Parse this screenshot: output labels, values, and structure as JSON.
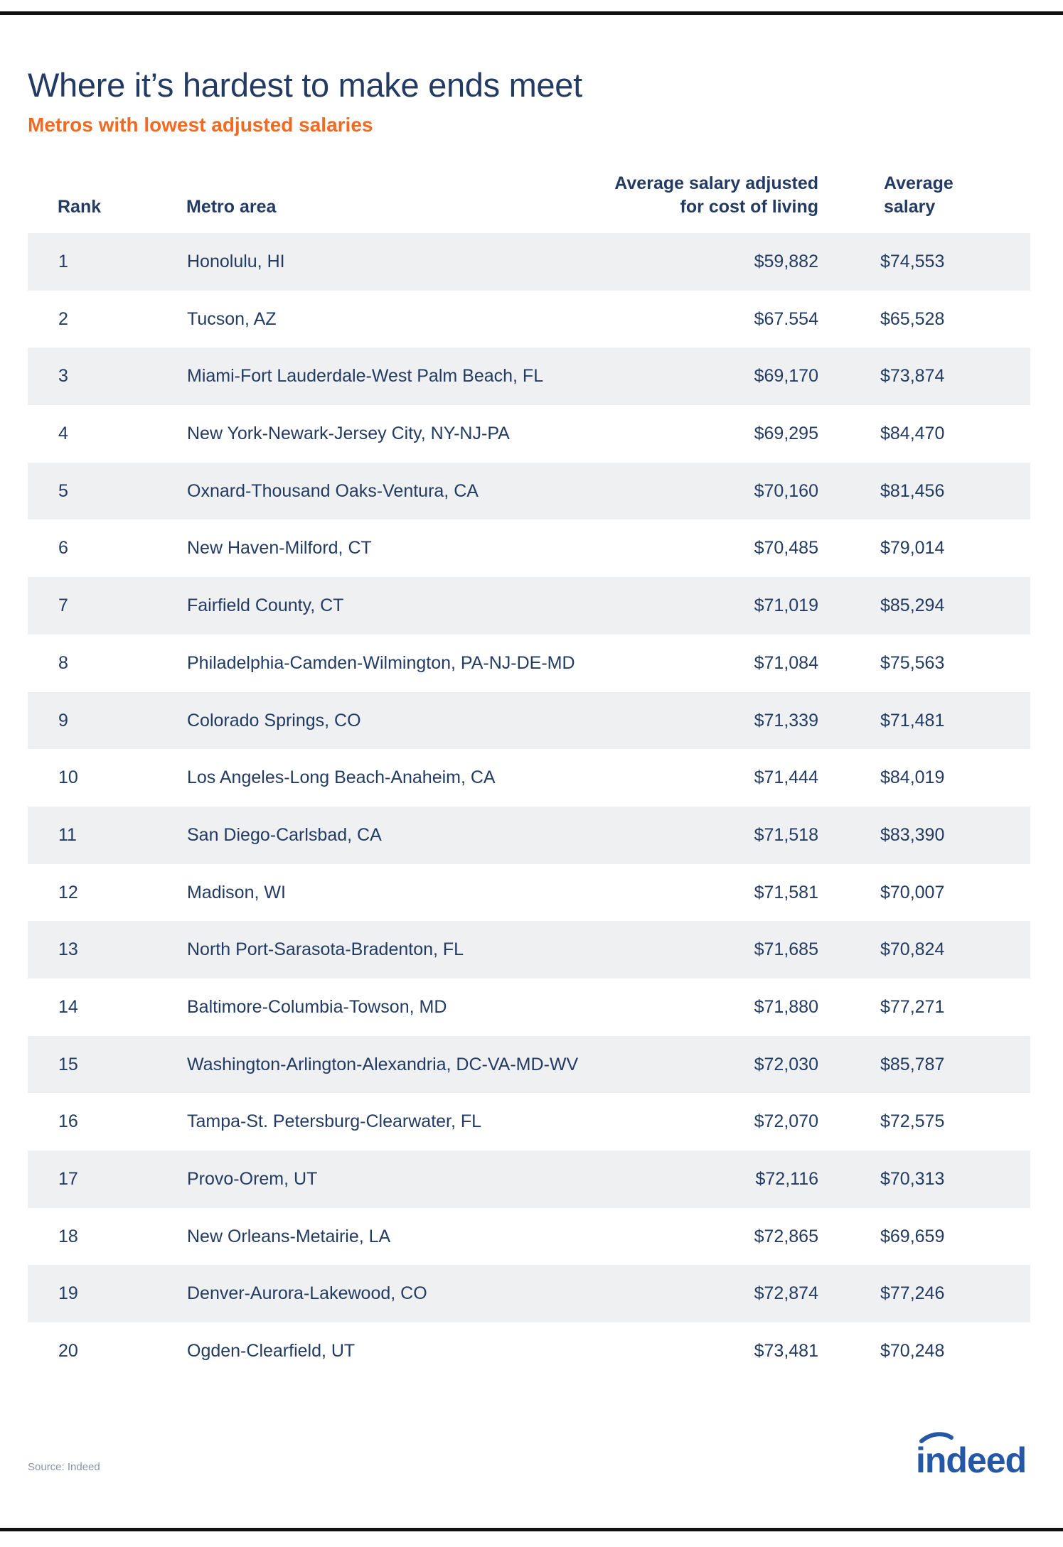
{
  "title": "Where it’s hardest to make ends meet",
  "subtitle": "Metros with lowest adjusted salaries",
  "colors": {
    "text": "#233b62",
    "accent": "#f26a21",
    "row_shade": "#eef0f1",
    "logo_blue": "#2557a7"
  },
  "source": "Source: Indeed",
  "logo": {
    "text": "indeed",
    "icon": "indeed-logo"
  },
  "chart_data": {
    "type": "table",
    "columns": [
      "Rank",
      "Metro area",
      "Average salary adjusted\nfor cost of living",
      "Average\nsalary"
    ],
    "rows": [
      [
        "1",
        "Honolulu, HI",
        "$59,882",
        "$74,553"
      ],
      [
        "2",
        "Tucson, AZ",
        "$67.554",
        "$65,528"
      ],
      [
        "3",
        "Miami-Fort Lauderdale-West Palm Beach, FL",
        "$69,170",
        "$73,874"
      ],
      [
        "4",
        "New York-Newark-Jersey City, NY-NJ-PA",
        "$69,295",
        "$84,470"
      ],
      [
        "5",
        "Oxnard-Thousand Oaks-Ventura, CA",
        "$70,160",
        "$81,456"
      ],
      [
        "6",
        "New Haven-Milford, CT",
        "$70,485",
        "$79,014"
      ],
      [
        "7",
        "Fairfield County, CT",
        "$71,019",
        "$85,294"
      ],
      [
        "8",
        "Philadelphia-Camden-Wilmington, PA-NJ-DE-MD",
        "$71,084",
        "$75,563"
      ],
      [
        "9",
        "Colorado Springs, CO",
        "$71,339",
        "$71,481"
      ],
      [
        "10",
        "Los Angeles-Long Beach-Anaheim, CA",
        "$71,444",
        "$84,019"
      ],
      [
        "11",
        "San Diego-Carlsbad, CA",
        "$71,518",
        "$83,390"
      ],
      [
        "12",
        "Madison, WI",
        "$71,581",
        "$70,007"
      ],
      [
        "13",
        "North Port-Sarasota-Bradenton, FL",
        "$71,685",
        "$70,824"
      ],
      [
        "14",
        "Baltimore-Columbia-Towson, MD",
        "$71,880",
        "$77,271"
      ],
      [
        "15",
        "Washington-Arlington-Alexandria, DC-VA-MD-WV",
        "$72,030",
        "$85,787"
      ],
      [
        "16",
        "Tampa-St. Petersburg-Clearwater, FL",
        "$72,070",
        "$72,575"
      ],
      [
        "17",
        "Provo-Orem, UT",
        "$72,116",
        "$70,313"
      ],
      [
        "18",
        "New Orleans-Metairie, LA",
        "$72,865",
        "$69,659"
      ],
      [
        "19",
        "Denver-Aurora-Lakewood, CO",
        "$72,874",
        "$77,246"
      ],
      [
        "20",
        "Ogden-Clearfield, UT",
        "$73,481",
        "$70,248"
      ]
    ]
  }
}
